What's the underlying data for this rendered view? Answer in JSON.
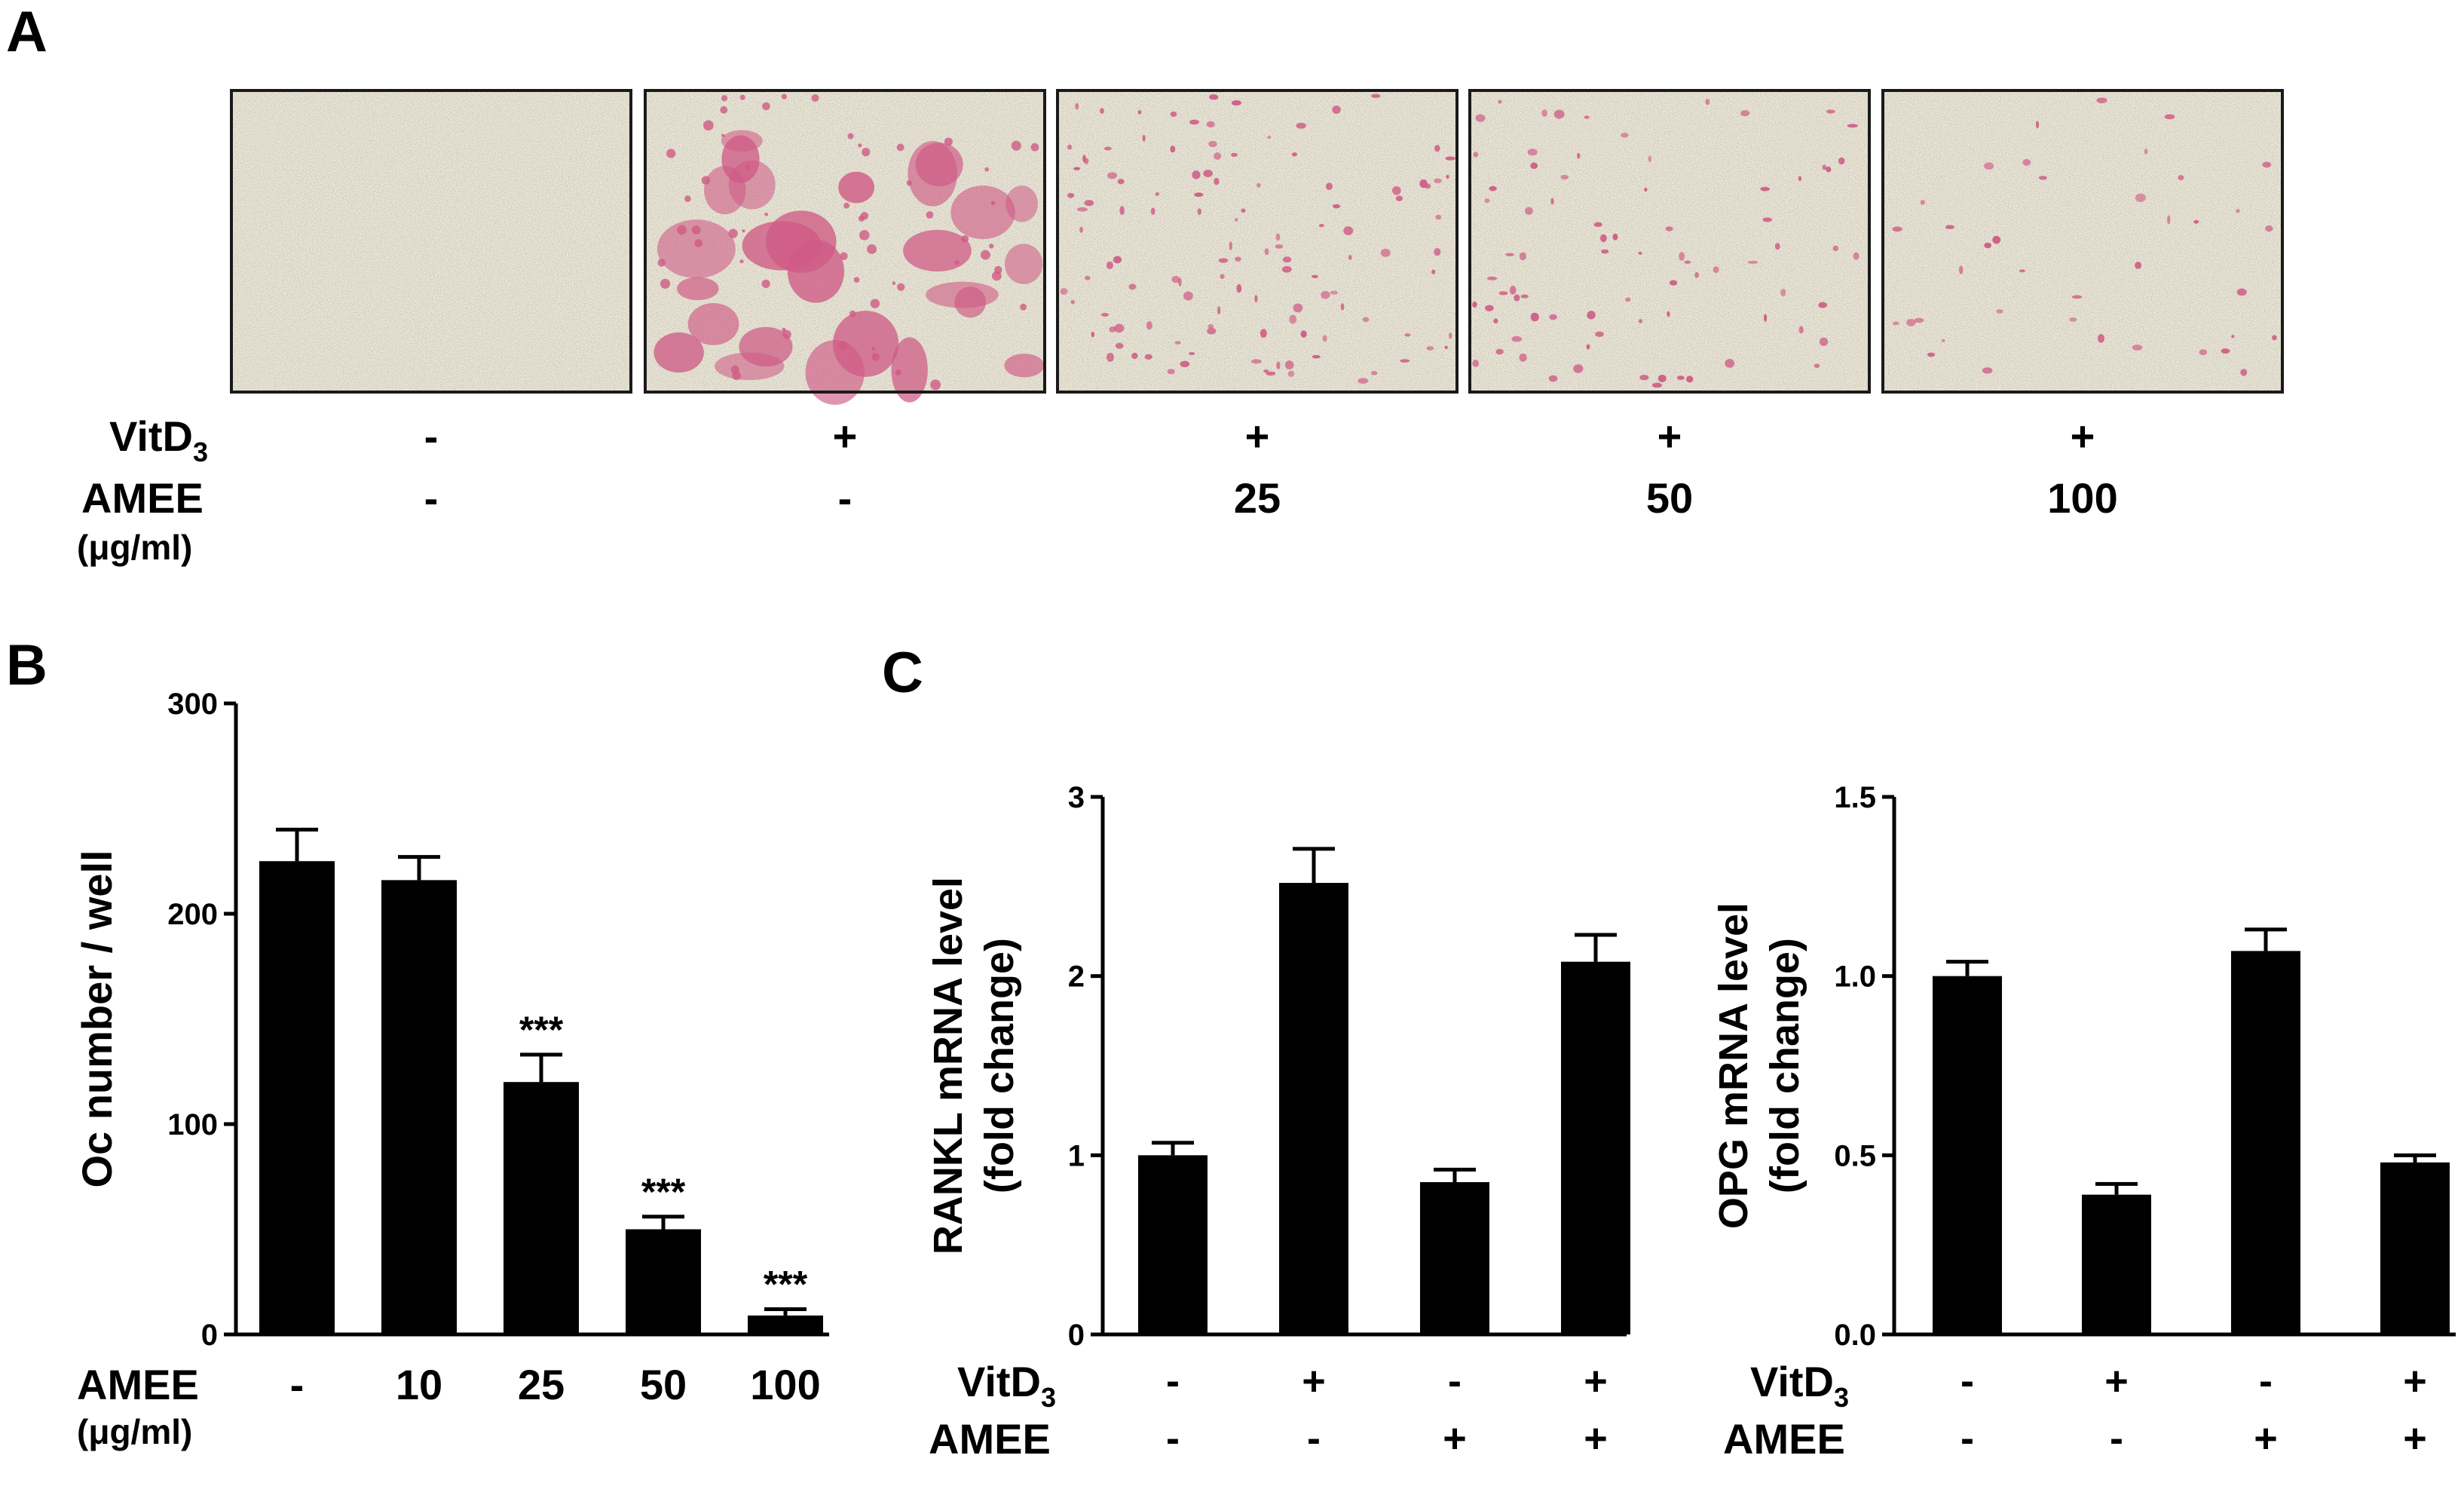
{
  "panels": {
    "A": {
      "letter": "A",
      "row_labels": {
        "vit": "VitD",
        "vit_sub": "3",
        "amee": "AMEE",
        "unit": "(μg/ml)"
      },
      "columns": [
        {
          "vit": "-",
          "amee": "-"
        },
        {
          "vit": "+",
          "amee": "-"
        },
        {
          "vit": "+",
          "amee": "25"
        },
        {
          "vit": "+",
          "amee": "50"
        },
        {
          "vit": "+",
          "amee": "100"
        }
      ],
      "colors": {
        "background": "#ece7d6",
        "stain": "#cf5a85",
        "grain": "#6e6a66",
        "frame": "#1a1a1a"
      },
      "stain_level": [
        0,
        1.0,
        0.45,
        0.3,
        0.15
      ]
    },
    "B": {
      "letter": "B",
      "amee_label": "AMEE",
      "unit": "(μg/ml)"
    },
    "C": {
      "letter": "C",
      "vit_label": "VitD",
      "vit_sub": "3",
      "amee_label": "AMEE"
    }
  },
  "chart_data": [
    {
      "type": "bar",
      "panel": "B",
      "categories": [
        "-",
        "10",
        "25",
        "50",
        "100"
      ],
      "values": [
        225,
        216,
        120,
        50,
        9
      ],
      "errors": [
        15,
        11,
        13,
        6,
        3
      ],
      "annotations": [
        "",
        "",
        "***",
        "***",
        "***"
      ],
      "ylabel": "Oc number / well",
      "ylim": [
        0,
        300
      ],
      "yticks": [
        "0",
        "100",
        "200",
        "300"
      ],
      "bar_color": "#000000"
    },
    {
      "type": "bar",
      "panel": "C",
      "categories": [
        "-/-",
        "+/-",
        "-/+",
        "+/+"
      ],
      "row1_label": "VitD3",
      "row1": [
        "-",
        "+",
        "-",
        "+"
      ],
      "row2_label": "AMEE",
      "row2": [
        "-",
        "-",
        "+",
        "+"
      ],
      "values": [
        1.0,
        2.52,
        0.85,
        2.08
      ],
      "errors": [
        0.07,
        0.19,
        0.07,
        0.15
      ],
      "ylabel": "RANKL mRNA level",
      "ylabel2": "(fold change)",
      "ylim": [
        0,
        3
      ],
      "yticks": [
        "0",
        "1",
        "2",
        "3"
      ],
      "bar_color": "#000000"
    },
    {
      "type": "bar",
      "panel": "C",
      "categories": [
        "-/-",
        "+/-",
        "-/+",
        "+/+"
      ],
      "row1_label": "VitD3",
      "row1": [
        "-",
        "+",
        "-",
        "+"
      ],
      "row2_label": "AMEE",
      "row2": [
        "-",
        "-",
        "+",
        "+"
      ],
      "values": [
        1.0,
        0.39,
        1.07,
        0.48
      ],
      "errors": [
        0.04,
        0.03,
        0.06,
        0.02
      ],
      "ylabel": "OPG mRNA level",
      "ylabel2": "(fold change)",
      "ylim": [
        0,
        1.5
      ],
      "yticks": [
        "0.0",
        "0.5",
        "1.0",
        "1.5"
      ],
      "bar_color": "#000000"
    }
  ]
}
